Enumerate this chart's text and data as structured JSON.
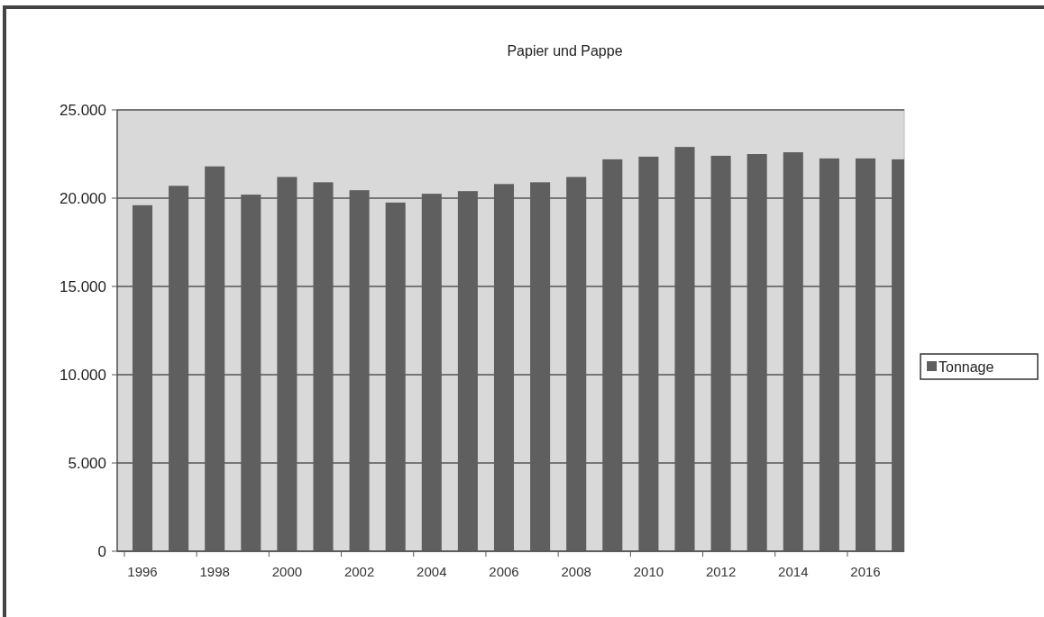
{
  "chart_data": {
    "type": "bar",
    "title": "Papier und Pappe",
    "categories": [
      "1996",
      null,
      "1998",
      null,
      "2000",
      null,
      "2002",
      null,
      "2004",
      null,
      "2006",
      null,
      "2008",
      null,
      "2010",
      null,
      "2012",
      null,
      "2014",
      null,
      "2016",
      null
    ],
    "series": [
      {
        "name": "Tonnage",
        "color": "#5f5f5f",
        "values": [
          19600,
          20700,
          21800,
          20200,
          21200,
          20900,
          20450,
          19750,
          20250,
          20400,
          20800,
          20900,
          21200,
          22200,
          22350,
          22900,
          22400,
          22500,
          22600,
          22250,
          22250,
          22200
        ]
      }
    ],
    "ylim": [
      0,
      25000
    ],
    "yticks": [
      {
        "value": 0,
        "label": "0"
      },
      {
        "value": 5000,
        "label": "5.000"
      },
      {
        "value": 10000,
        "label": "10.000"
      },
      {
        "value": 15000,
        "label": "15.000"
      },
      {
        "value": 20000,
        "label": "20.000"
      },
      {
        "value": 25000,
        "label": "25.000"
      }
    ],
    "grid": "y",
    "legend": "right"
  }
}
